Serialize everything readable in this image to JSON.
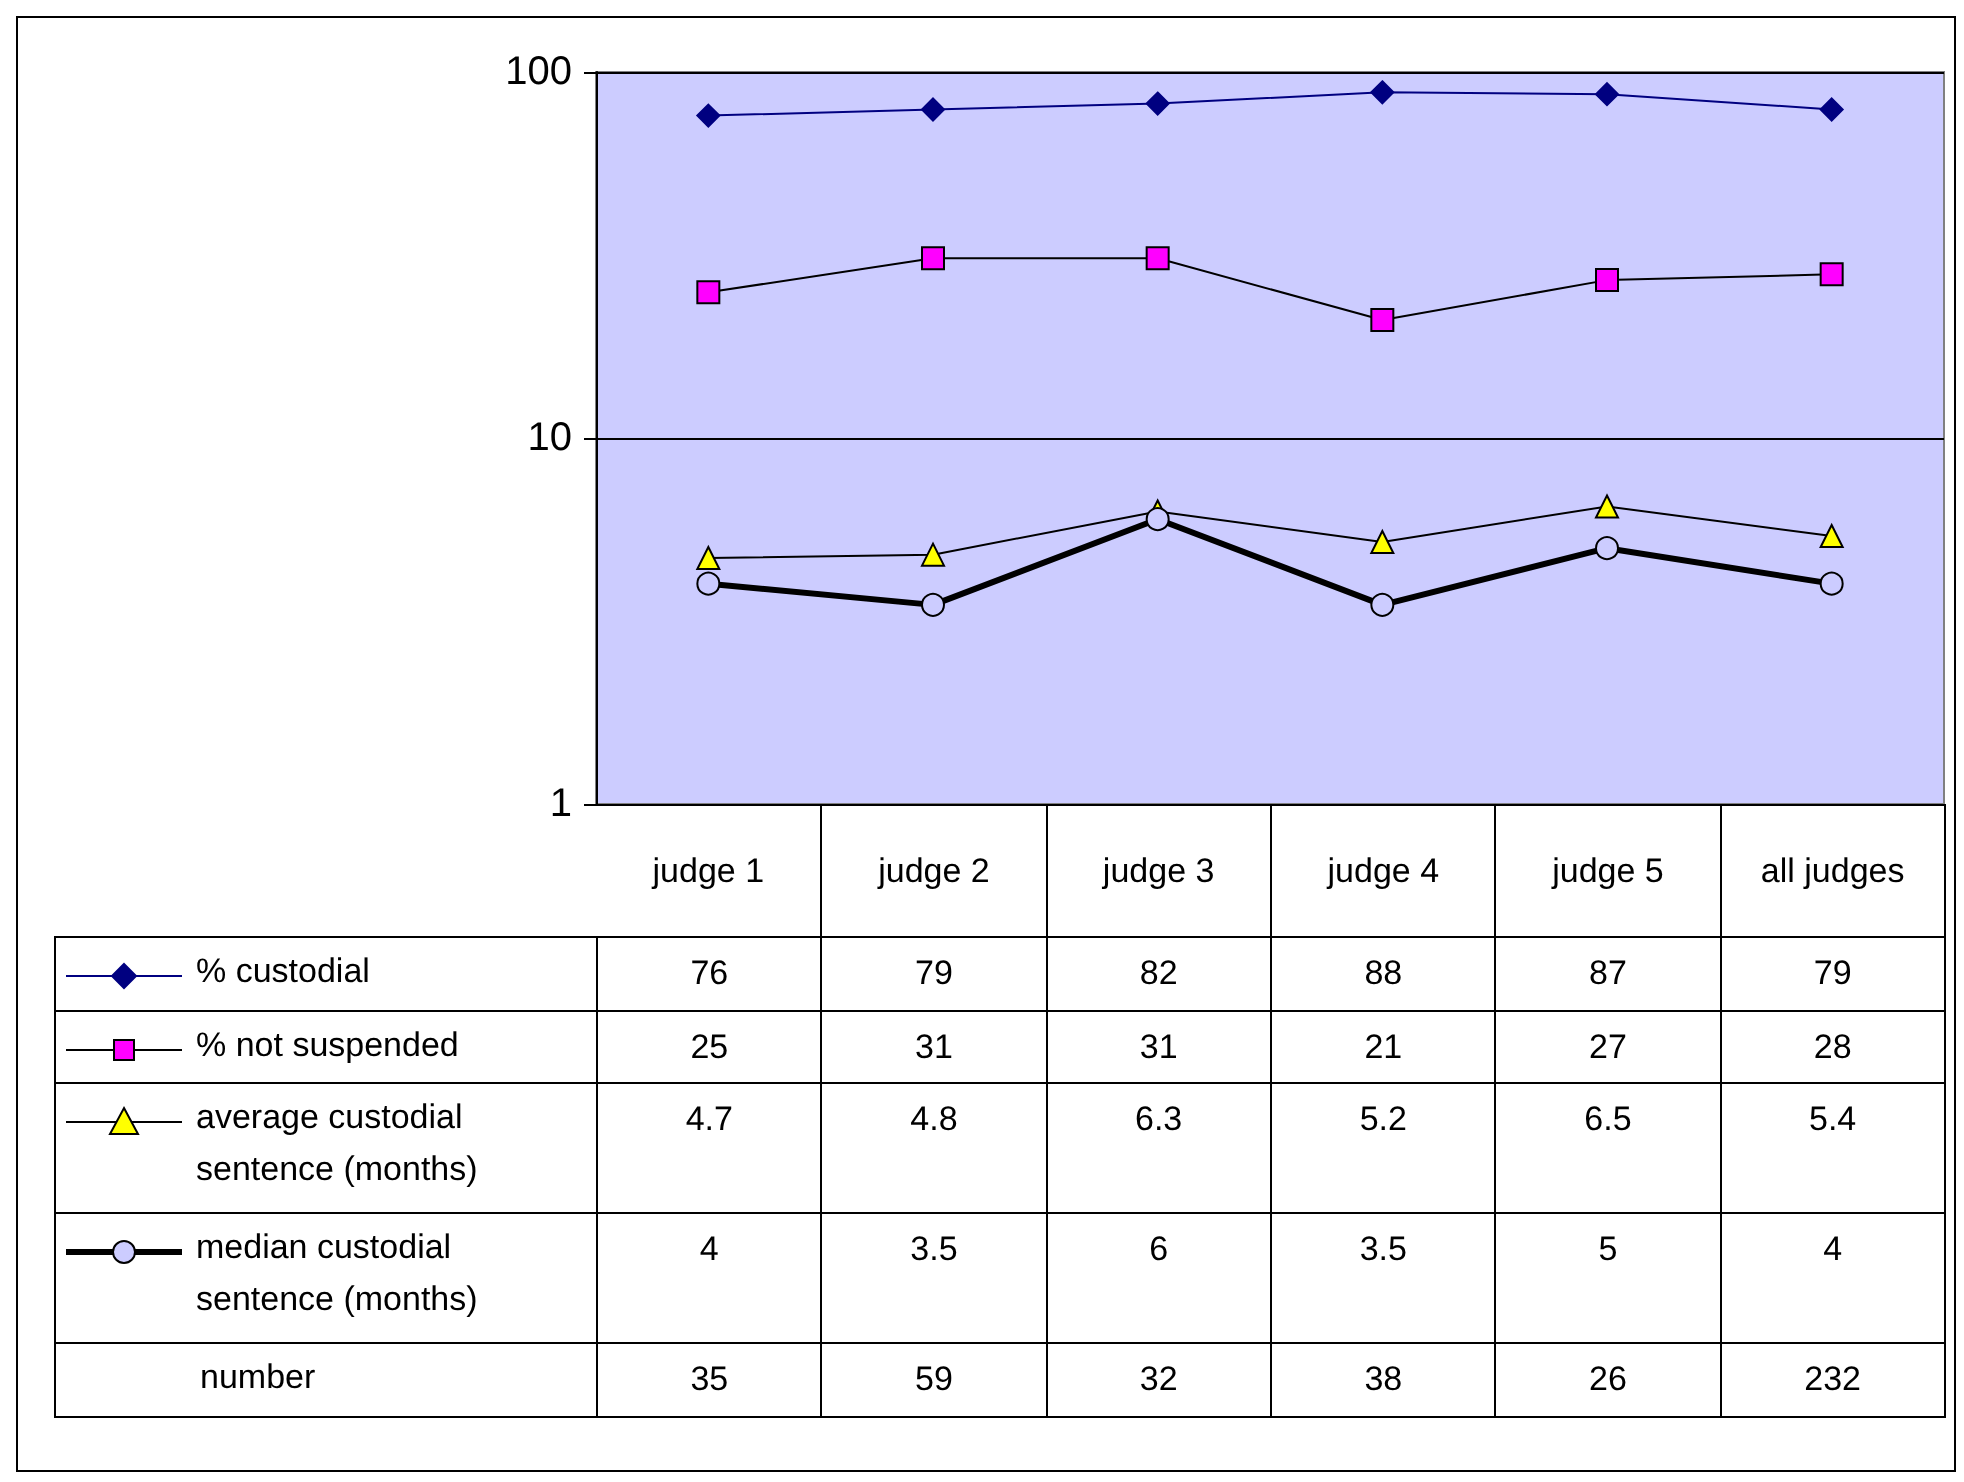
{
  "chart_data": {
    "type": "line",
    "categories": [
      "judge 1",
      "judge 2",
      "judge 3",
      "judge 4",
      "judge 5",
      "all judges"
    ],
    "series": [
      {
        "name": "% custodial",
        "color": "#000080",
        "marker": "diamond",
        "values": [
          76,
          79,
          82,
          88,
          87,
          79
        ]
      },
      {
        "name": "% not suspended",
        "color": "#ff00ff",
        "marker": "square",
        "values": [
          25,
          31,
          31,
          21,
          27,
          28
        ]
      },
      {
        "name": "average custodial sentence (months)",
        "color": "#ffff00",
        "marker": "triangle",
        "values": [
          4.7,
          4.8,
          6.3,
          5.2,
          6.5,
          5.4
        ]
      },
      {
        "name": "median custodial sentence (months)",
        "color": "#ccccff",
        "marker": "circle",
        "values": [
          4,
          3.5,
          6,
          3.5,
          5,
          4
        ]
      }
    ],
    "annotations": [
      "number",
      "35",
      "59",
      "32",
      "38",
      "26",
      "232"
    ],
    "log": true,
    "ylim": [
      1,
      100
    ],
    "yticks": [
      1,
      10,
      100
    ],
    "grid": "y",
    "legend": "bottom left",
    "data_labels": true
  }
}
